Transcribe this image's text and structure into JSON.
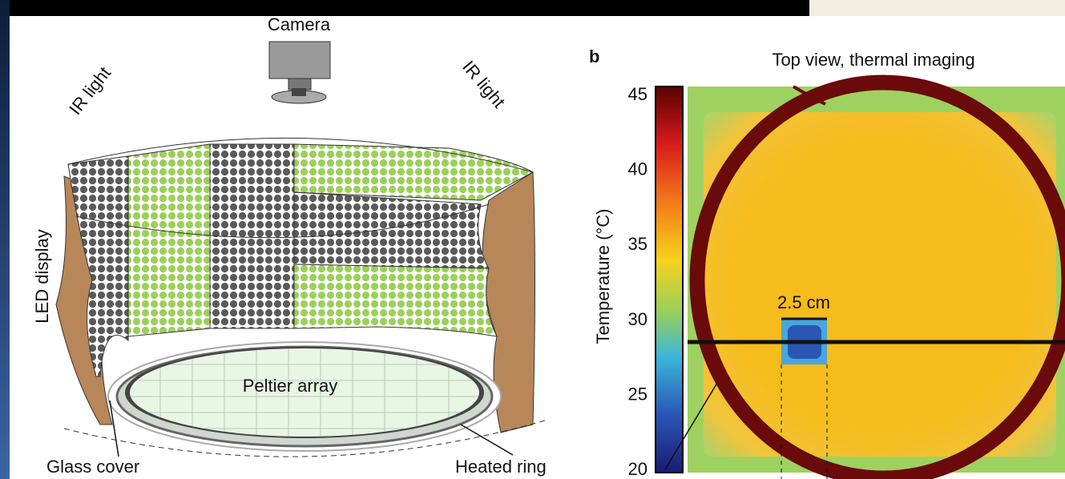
{
  "panel_a": {
    "labels": {
      "camera": "Camera",
      "ir_left": "IR light",
      "ir_right": "IR light",
      "led_display": "LED display",
      "peltier": "Peltier array",
      "glass_cover": "Glass cover",
      "heated_ring": "Heated ring"
    }
  },
  "panel_b": {
    "letter": "b",
    "title": "Top view, thermal imaging",
    "colorbar": {
      "label": "Temperature (°C)",
      "ticks": [
        45,
        40,
        35,
        30,
        25,
        20
      ]
    },
    "scale_label": "2.5 cm"
  }
}
